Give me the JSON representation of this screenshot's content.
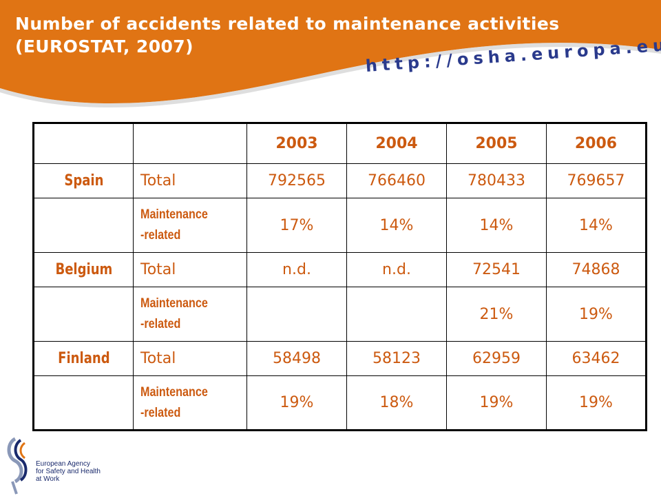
{
  "slide": {
    "title_line1": "Number of accidents related to maintenance activities",
    "title_line2": "(EUROSTAT, 2007)",
    "url": "http://osha.europa.eu"
  },
  "table": {
    "years": [
      "2003",
      "2004",
      "2005",
      "2006"
    ],
    "rows": [
      {
        "country": "Spain",
        "label": "Total",
        "values": [
          "792565",
          "766460",
          "780433",
          "769657"
        ]
      },
      {
        "country": "",
        "label": "Maintenance-related",
        "values": [
          "17%",
          "14%",
          "14%",
          "14%"
        ]
      },
      {
        "country": "Belgium",
        "label": "Total",
        "values": [
          "n.d.",
          "n.d.",
          "72541",
          "74868"
        ]
      },
      {
        "country": "",
        "label": "Maintenance-related",
        "values": [
          "",
          "",
          "21%",
          "19%"
        ]
      },
      {
        "country": "Finland",
        "label": "Total",
        "values": [
          "58498",
          "58123",
          "62959",
          "63462"
        ]
      },
      {
        "country": "",
        "label": "Maintenance-related",
        "values": [
          "19%",
          "18%",
          "19%",
          "19%"
        ]
      }
    ],
    "maint_label_line1": "Maintenance",
    "maint_label_line2": "-related"
  },
  "logo": {
    "line1": "European Agency",
    "line2": "for Safety and Health",
    "line3": "at Work"
  },
  "colors": {
    "banner": "#e07414",
    "text_accent": "#cc5a10",
    "url_blue": "#2a3a8c"
  }
}
